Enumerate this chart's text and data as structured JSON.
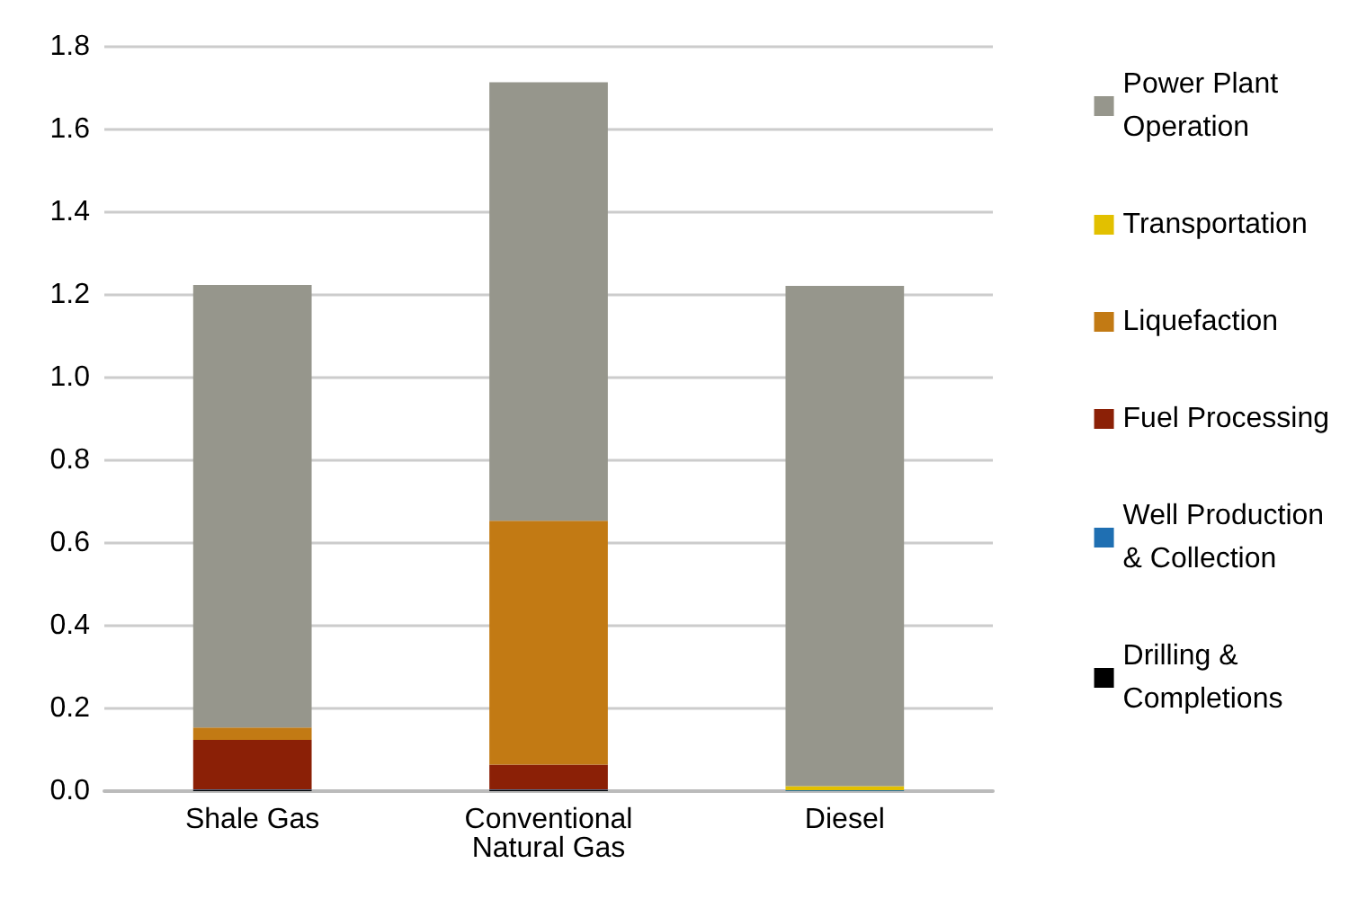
{
  "chart_data": {
    "type": "bar",
    "stacked": true,
    "categories": [
      "Shale Gas",
      "Conventional\nNatural Gas",
      "Diesel"
    ],
    "series": [
      {
        "name": "Drilling &\nCompletions",
        "color": "#000000",
        "values": [
          0.002,
          0.002,
          null
        ]
      },
      {
        "name": "Well Production\n& Collection",
        "color": "#1f6fb2",
        "values": [
          0.002,
          0.002,
          0.002
        ]
      },
      {
        "name": "Fuel Processing",
        "color": "#8b2006",
        "values": [
          0.12,
          0.06,
          0
        ]
      },
      {
        "name": "Liquefaction",
        "color": "#c27a14",
        "values": [
          0.03,
          0.59,
          0
        ]
      },
      {
        "name": "Transportation",
        "color": "#e2c000",
        "values": [
          0,
          0,
          0.01
        ]
      },
      {
        "name": "Power Plant\nOperation",
        "color": "#96968c",
        "values": [
          1.07,
          1.06,
          1.21
        ]
      }
    ],
    "ylim": [
      0,
      1.8
    ],
    "yticks": [
      {
        "value": 0,
        "label": "0.0"
      },
      0.2,
      0.4,
      0.6,
      0.8,
      {
        "value": 1,
        "label": "1.0"
      },
      1.2,
      1.4,
      1.6,
      1.8
    ],
    "grid": "y",
    "legend": "right"
  }
}
